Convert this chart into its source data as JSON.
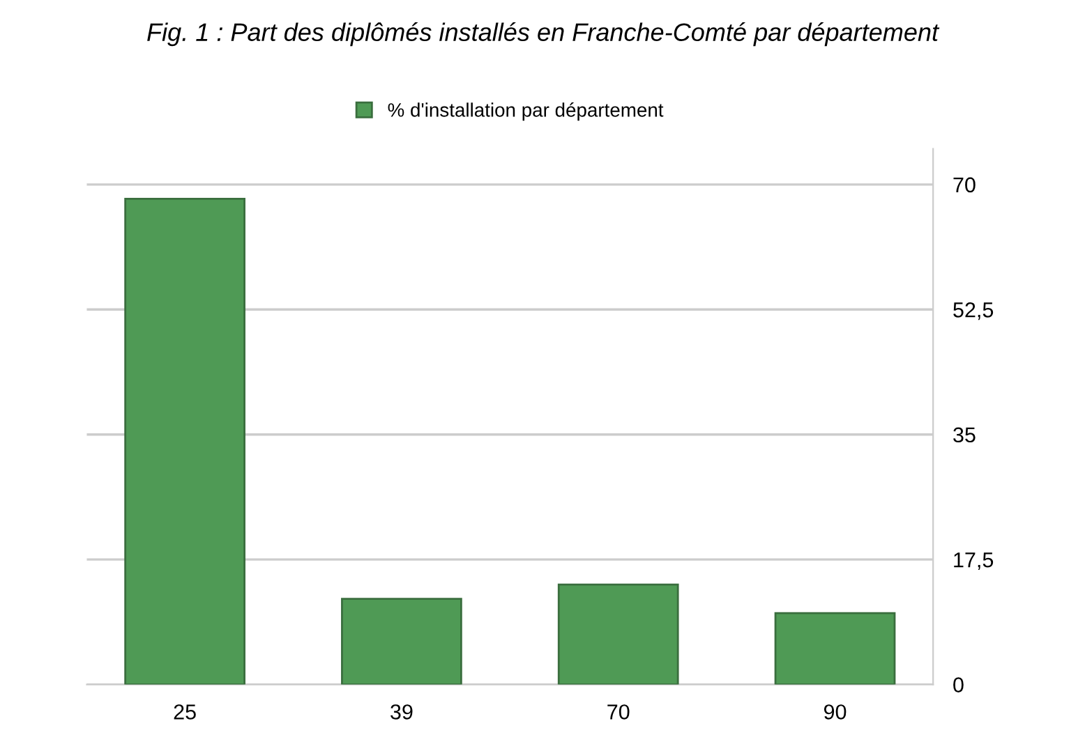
{
  "chart_data": {
    "type": "bar",
    "title": "Fig. 1 : Part des diplômés installés en Franche-Comté par département",
    "categories": [
      "25",
      "39",
      "70",
      "90"
    ],
    "series": [
      {
        "name": "% d'installation par département",
        "color": "#4f9a55",
        "values": [
          68,
          12,
          14,
          10
        ]
      }
    ],
    "ylim": [
      0,
      75
    ],
    "yticks": [
      0,
      {
        "value": 17.5,
        "label": "17,5"
      },
      35,
      {
        "value": 52.5,
        "label": "52,5"
      },
      70
    ],
    "grid": "y",
    "legend": "top"
  }
}
